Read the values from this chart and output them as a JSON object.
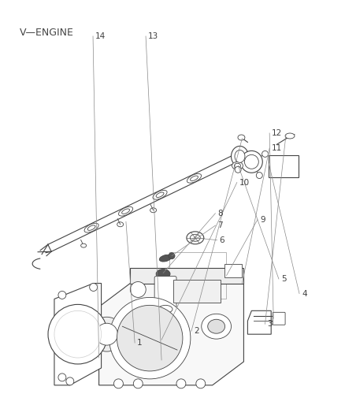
{
  "title": "V—ENGINE",
  "background_color": "#ffffff",
  "label_color": "#404040",
  "line_color": "#444444",
  "figsize": [
    4.38,
    5.33
  ],
  "dpi": 100,
  "leaders": {
    "1": {
      "lpos": [
        0.39,
        0.818
      ],
      "ppos": [
        0.295,
        0.745
      ]
    },
    "2": {
      "lpos": [
        0.575,
        0.792
      ],
      "ppos": [
        0.535,
        0.748
      ]
    },
    "3": {
      "lpos": [
        0.795,
        0.775
      ],
      "ppos": [
        0.755,
        0.753
      ]
    },
    "4": {
      "lpos": [
        0.88,
        0.703
      ],
      "ppos": [
        0.79,
        0.703
      ]
    },
    "5": {
      "lpos": [
        0.83,
        0.668
      ],
      "ppos": [
        0.7,
        0.663
      ]
    },
    "6": {
      "lpos": [
        0.645,
        0.573
      ],
      "ppos": [
        0.548,
        0.568
      ]
    },
    "7": {
      "lpos": [
        0.64,
        0.538
      ],
      "ppos": [
        0.498,
        0.532
      ]
    },
    "8": {
      "lpos": [
        0.64,
        0.51
      ],
      "ppos": [
        0.48,
        0.505
      ]
    },
    "9": {
      "lpos": [
        0.76,
        0.524
      ],
      "ppos": [
        0.66,
        0.524
      ]
    },
    "10": {
      "lpos": [
        0.7,
        0.435
      ],
      "ppos": [
        0.468,
        0.435
      ]
    },
    "11": {
      "lpos": [
        0.8,
        0.352
      ],
      "ppos": [
        0.7,
        0.37
      ]
    },
    "12": {
      "lpos": [
        0.8,
        0.318
      ],
      "ppos": [
        0.735,
        0.305
      ]
    },
    "13": {
      "lpos": [
        0.435,
        0.082
      ],
      "ppos": [
        0.41,
        0.172
      ]
    },
    "14": {
      "lpos": [
        0.28,
        0.082
      ],
      "ppos": [
        0.25,
        0.22
      ]
    }
  }
}
